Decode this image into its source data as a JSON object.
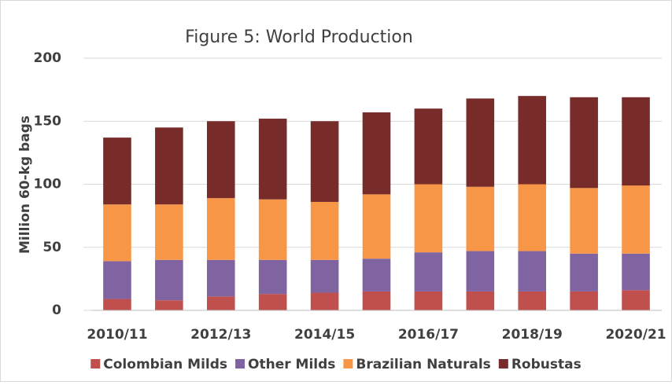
{
  "chart_data": {
    "type": "stacked-bar",
    "title": "Figure 5: World Production",
    "y_label": "Million 60-kg bags",
    "categories": [
      "2010/11",
      null,
      "2012/13",
      null,
      "2014/15",
      null,
      "2016/17",
      null,
      "2018/19",
      null,
      "2020/21"
    ],
    "series": [
      {
        "name": "Colombian Milds",
        "color": "#c0504d",
        "values": [
          9,
          8,
          11,
          13,
          14,
          15,
          15,
          15,
          15,
          15,
          16
        ]
      },
      {
        "name": "Other Milds",
        "color": "#8064a2",
        "values": [
          30,
          32,
          29,
          27,
          26,
          26,
          31,
          32,
          32,
          30,
          29
        ]
      },
      {
        "name": "Brazilian Naturals",
        "color": "#f79646",
        "values": [
          45,
          44,
          49,
          48,
          46,
          51,
          54,
          51,
          53,
          52,
          54
        ]
      },
      {
        "name": "Robustas",
        "color": "#772c2a",
        "values": [
          53,
          61,
          61,
          64,
          64,
          65,
          60,
          70,
          70,
          72,
          70
        ]
      }
    ],
    "ylim": [
      0,
      200
    ],
    "yticks": [
      0,
      50,
      100,
      150,
      200
    ],
    "grid": true,
    "legend": "bottom"
  }
}
